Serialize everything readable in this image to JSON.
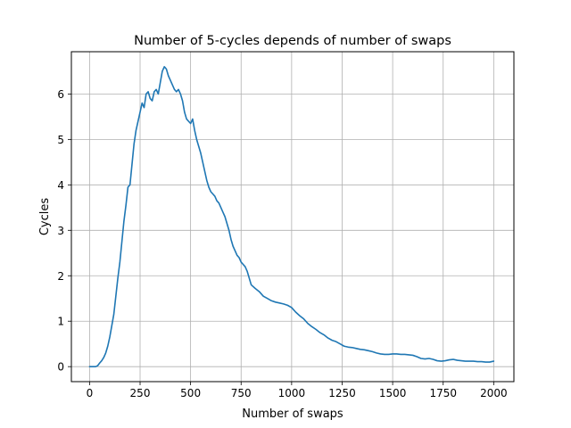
{
  "chart_data": {
    "type": "line",
    "title": "Number of 5-cycles depends of number of swaps",
    "xlabel": "Number of swaps",
    "ylabel": "Cycles",
    "xlim": [
      -90,
      2100
    ],
    "ylim": [
      -0.33,
      6.93
    ],
    "xticks": [
      0,
      250,
      500,
      750,
      1000,
      1250,
      1500,
      1750,
      2000
    ],
    "yticks": [
      0,
      1,
      2,
      3,
      4,
      5,
      6
    ],
    "xtick_labels": [
      "0",
      "250",
      "500",
      "750",
      "1000",
      "1250",
      "1500",
      "1750",
      "2000"
    ],
    "ytick_labels": [
      "0",
      "1",
      "2",
      "3",
      "4",
      "5",
      "6"
    ],
    "grid": true,
    "series": [
      {
        "color": "#1f77b4",
        "x": [
          0,
          20,
          30,
          40,
          50,
          60,
          70,
          80,
          90,
          100,
          110,
          120,
          130,
          140,
          150,
          160,
          170,
          180,
          190,
          200,
          210,
          220,
          230,
          240,
          250,
          260,
          270,
          280,
          290,
          300,
          310,
          320,
          330,
          340,
          350,
          360,
          370,
          380,
          390,
          400,
          410,
          420,
          430,
          440,
          450,
          460,
          470,
          480,
          490,
          500,
          510,
          520,
          530,
          540,
          550,
          560,
          570,
          580,
          590,
          600,
          610,
          620,
          630,
          640,
          650,
          660,
          670,
          680,
          690,
          700,
          710,
          720,
          730,
          740,
          750,
          760,
          770,
          780,
          790,
          800,
          820,
          840,
          860,
          880,
          900,
          920,
          940,
          960,
          980,
          1000,
          1020,
          1040,
          1060,
          1080,
          1100,
          1120,
          1140,
          1160,
          1180,
          1200,
          1220,
          1240,
          1260,
          1280,
          1300,
          1320,
          1340,
          1360,
          1380,
          1400,
          1420,
          1440,
          1460,
          1480,
          1500,
          1520,
          1540,
          1560,
          1580,
          1600,
          1620,
          1640,
          1660,
          1680,
          1700,
          1720,
          1740,
          1760,
          1780,
          1800,
          1820,
          1840,
          1860,
          1880,
          1900,
          1920,
          1940,
          1960,
          1980,
          2000
        ],
        "y": [
          0.0,
          0.0,
          0.0,
          0.02,
          0.08,
          0.13,
          0.2,
          0.3,
          0.45,
          0.65,
          0.9,
          1.15,
          1.55,
          1.95,
          2.3,
          2.75,
          3.2,
          3.55,
          3.95,
          4.0,
          4.45,
          4.9,
          5.2,
          5.4,
          5.6,
          5.8,
          5.7,
          6.0,
          6.05,
          5.9,
          5.85,
          6.05,
          6.1,
          6.0,
          6.25,
          6.5,
          6.6,
          6.55,
          6.4,
          6.3,
          6.2,
          6.1,
          6.05,
          6.1,
          6.0,
          5.85,
          5.6,
          5.45,
          5.4,
          5.35,
          5.45,
          5.2,
          5.0,
          4.85,
          4.7,
          4.5,
          4.3,
          4.1,
          3.95,
          3.85,
          3.8,
          3.75,
          3.65,
          3.6,
          3.5,
          3.4,
          3.3,
          3.15,
          3.0,
          2.8,
          2.65,
          2.55,
          2.45,
          2.4,
          2.3,
          2.25,
          2.2,
          2.1,
          1.95,
          1.8,
          1.72,
          1.65,
          1.55,
          1.5,
          1.45,
          1.42,
          1.4,
          1.38,
          1.35,
          1.3,
          1.2,
          1.12,
          1.05,
          0.95,
          0.88,
          0.82,
          0.75,
          0.7,
          0.63,
          0.58,
          0.55,
          0.5,
          0.45,
          0.43,
          0.42,
          0.4,
          0.38,
          0.37,
          0.35,
          0.33,
          0.3,
          0.28,
          0.27,
          0.27,
          0.28,
          0.28,
          0.27,
          0.27,
          0.26,
          0.25,
          0.22,
          0.18,
          0.17,
          0.18,
          0.16,
          0.13,
          0.12,
          0.13,
          0.15,
          0.16,
          0.14,
          0.13,
          0.12,
          0.12,
          0.12,
          0.11,
          0.11,
          0.1,
          0.1,
          0.12
        ]
      }
    ]
  }
}
